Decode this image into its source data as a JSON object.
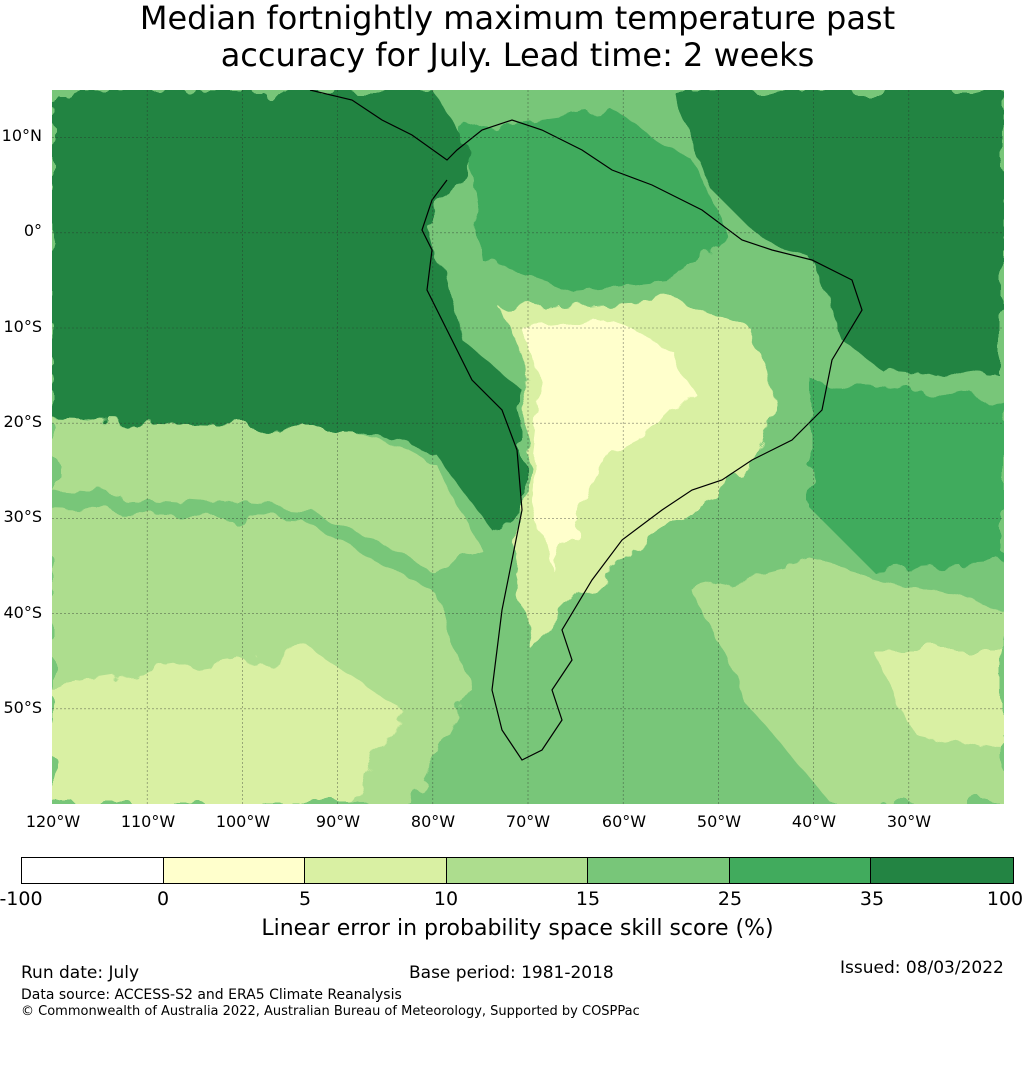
{
  "title": {
    "line1": "Median fortnightly maximum temperature past",
    "line2": "accuracy for July. Lead time: 2 weeks"
  },
  "map": {
    "lat_labels": [
      "10°N",
      "0°",
      "10°S",
      "20°S",
      "30°S",
      "40°S",
      "50°S"
    ],
    "lon_labels": [
      "120°W",
      "110°W",
      "100°W",
      "90°W",
      "80°W",
      "70°W",
      "60°W",
      "50°W",
      "40°W",
      "30°W"
    ],
    "graticule": "on",
    "coastlines": "black"
  },
  "legend": {
    "ticks": [
      "-100",
      "0",
      "5",
      "10",
      "15",
      "25",
      "35",
      "100"
    ],
    "colors": [
      "#ffffff",
      "#ffffcc",
      "#d9f0a3",
      "#addd8e",
      "#78c679",
      "#41ab5d",
      "#238443"
    ],
    "label": "Linear error in probability space skill score (%)"
  },
  "footer": {
    "run_date": "Run date: July",
    "base_period": "Base period: 1981-2018",
    "issued": "Issued: 08/03/2022",
    "data_source": "Data source: ACCESS-S2 and ERA5 Climate Reanalysis",
    "copyright": "© Commonwealth of Australia 2022, Australian Bureau of Meteorology, Supported by COSPPac"
  }
}
